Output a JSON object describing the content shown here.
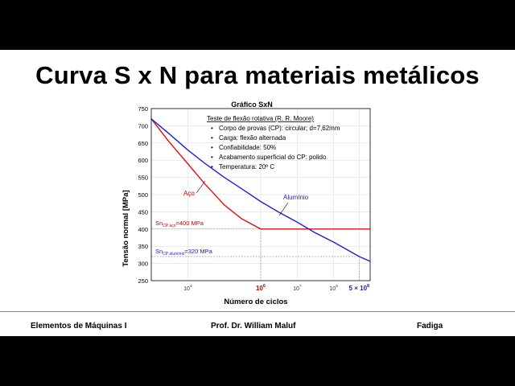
{
  "slide": {
    "title": "Curva S x N para materiais metálicos",
    "footer_left": "Elementos de Máquinas I",
    "footer_center": "Prof. Dr. William Maluf",
    "footer_right": "Fadiga"
  },
  "chart_data": {
    "type": "line",
    "title": "Gráfico SxN",
    "xlabel": "Número de ciclos",
    "ylabel": "Tensão normal [MPa]",
    "x_scale": "log",
    "xlim": [
      1000,
      1000000000
    ],
    "ylim": [
      250,
      750
    ],
    "yticks": [
      250,
      300,
      350,
      400,
      450,
      500,
      550,
      600,
      650,
      700,
      750
    ],
    "xticks": [
      {
        "value": 10000,
        "base": "10",
        "exp": "4"
      },
      {
        "value": 1000000,
        "base": "10",
        "exp": "6"
      },
      {
        "value": 10000000,
        "base": "10",
        "exp": "7"
      },
      {
        "value": 100000000,
        "base": "10",
        "exp": "8"
      }
    ],
    "special_xticks": [
      {
        "value": 1000000,
        "base": "10",
        "exp": "6",
        "color": "#c00000"
      },
      {
        "value": 500000000,
        "prefix": "5 × ",
        "base": "10",
        "exp": "8",
        "color": "#1f1fa8"
      }
    ],
    "series": [
      {
        "name": "Aço",
        "color": "#e01010",
        "x": [
          1000,
          3000,
          10000,
          30000,
          100000,
          300000,
          1000000,
          1000000000
        ],
        "y": [
          720,
          655,
          590,
          530,
          470,
          430,
          400,
          400
        ]
      },
      {
        "name": "Alumínio",
        "color": "#1f1fd0",
        "x": [
          1000,
          3000,
          10000,
          30000,
          100000,
          300000,
          1000000,
          3000000,
          10000000,
          30000000,
          100000000,
          500000000,
          1000000000
        ],
        "y": [
          720,
          678,
          630,
          590,
          550,
          517,
          480,
          450,
          420,
          390,
          362,
          320,
          306
        ]
      }
    ],
    "annotations": {
      "box_title": "Teste de flexão rotativa (R. R. Moore)",
      "bullets": [
        "Corpo de provas (CP): circular; d=7,62mm",
        "Carga: flexão alternada",
        "Confiabilidade: 50%",
        "Acabamento superficial do CP: polido",
        "Temperatura: 20º C"
      ],
      "steel_label": "Aço",
      "aluminum_label": "Alumínio",
      "sn_steel": {
        "prefix": "Sn",
        "sub": "CP aço",
        "suffix": "=400 MPa",
        "value": 400,
        "color": "#c00000"
      },
      "sn_aluminum": {
        "prefix": "Sn",
        "sub": "CP alumínio",
        "suffix": "=320 MPa",
        "value": 320,
        "color": "#1f1fa8"
      }
    }
  }
}
